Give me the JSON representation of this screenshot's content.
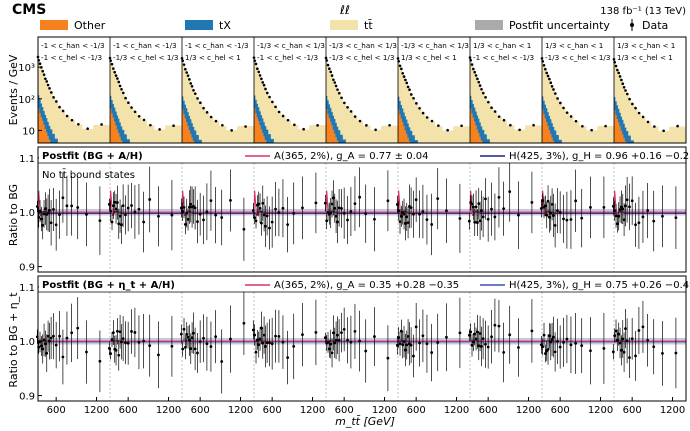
{
  "header": {
    "experiment": "CMS",
    "channel": "ℓℓ",
    "lumi": "138 fb⁻¹ (13 TeV)"
  },
  "legend": [
    {
      "label": "Other",
      "color": "#f5821f",
      "kind": "fill"
    },
    {
      "label": "tX",
      "color": "#1f77b4",
      "kind": "fill"
    },
    {
      "label": "tt̄",
      "color": "#f3e3ab",
      "kind": "fill"
    },
    {
      "label": "Postfit uncertainty",
      "color": "#aaaaaa",
      "kind": "fill"
    },
    {
      "label": "Data",
      "color": "#000000",
      "kind": "point"
    }
  ],
  "bins": [
    {
      "chan": "-1 < c_han < -1/3",
      "hel": "-1 < c_hel < -1/3"
    },
    {
      "chan": "-1 < c_han < -1/3",
      "hel": "-1/3 < c_hel < 1/3"
    },
    {
      "chan": "-1 < c_han < -1/3",
      "hel": "1/3 < c_hel < 1"
    },
    {
      "chan": "-1/3 < c_han < 1/3",
      "hel": "-1 < c_hel < -1/3"
    },
    {
      "chan": "-1/3 < c_han < 1/3",
      "hel": "-1/3 < c_hel < 1/3"
    },
    {
      "chan": "-1/3 < c_han < 1/3",
      "hel": "1/3 < c_hel < 1"
    },
    {
      "chan": "1/3 < c_han < 1",
      "hel": "-1 < c_hel < -1/3"
    },
    {
      "chan": "1/3 < c_han < 1",
      "hel": "-1/3 < c_hel < 1/3"
    },
    {
      "chan": "1/3 < c_han < 1",
      "hel": "1/3 < c_hel < 1"
    }
  ],
  "chart_data": {
    "type": "bar",
    "xlabel": "m_tt̄ [GeV]",
    "x_tick_labels": [
      "600",
      "1200"
    ],
    "top_panel": {
      "ylabel": "Events / GeV",
      "yscale": "log",
      "y_tick_labels": [
        "10",
        "10²",
        "10³"
      ],
      "bin_centers": [
        320,
        340,
        360,
        380,
        400,
        420,
        440,
        460,
        480,
        500,
        525,
        560,
        600,
        650,
        700,
        760,
        830,
        920,
        1050,
        1250
      ],
      "stack_ttbar": [
        1900,
        1550,
        1180,
        880,
        680,
        530,
        410,
        320,
        250,
        195,
        145,
        105,
        75,
        52,
        38,
        27,
        20,
        14,
        10,
        14
      ],
      "stack_tX": [
        110,
        80,
        60,
        45,
        35,
        26,
        20,
        16,
        12,
        9,
        7,
        5,
        3.5,
        2.5,
        1.8,
        1.3,
        1,
        0.8,
        0.6,
        0.6
      ],
      "stack_other": [
        70,
        50,
        35,
        26,
        20,
        15,
        11,
        8.5,
        6.5,
        5,
        3.8,
        2.8,
        2,
        1.5,
        1.1,
        0.8,
        0.6,
        0.5,
        0.4,
        0.4
      ]
    },
    "middle_panel": {
      "title": "Postfit (BG + A/H)",
      "ylabel": "Ratio to BG",
      "ylim": [
        0.89,
        1.12
      ],
      "y_tick_labels": [
        "0.9",
        "1.0",
        "1.1"
      ],
      "annotation": "No tt̄ bound states",
      "series": [
        {
          "name": "A(365, 2%), g_A = 0.77 ± 0.04",
          "color": "#d6336c"
        },
        {
          "name": "H(425, 3%), g_H = 0.96 +0.16 −0.25",
          "color": "#1a237e"
        }
      ]
    },
    "bottom_panel": {
      "title": "Postfit (BG + η_t + A/H)",
      "ylabel": "Ratio to BG + η_t",
      "ylim": [
        0.89,
        1.12
      ],
      "y_tick_labels": [
        "0.9",
        "1.0",
        "1.1"
      ],
      "series": [
        {
          "name": "A(365, 2%), g_A = 0.35 +0.28 −0.35",
          "color": "#d6336c"
        },
        {
          "name": "H(425, 3%), g_H = 0.75 +0.26 −0.49",
          "color": "#3f51b5"
        }
      ]
    }
  }
}
